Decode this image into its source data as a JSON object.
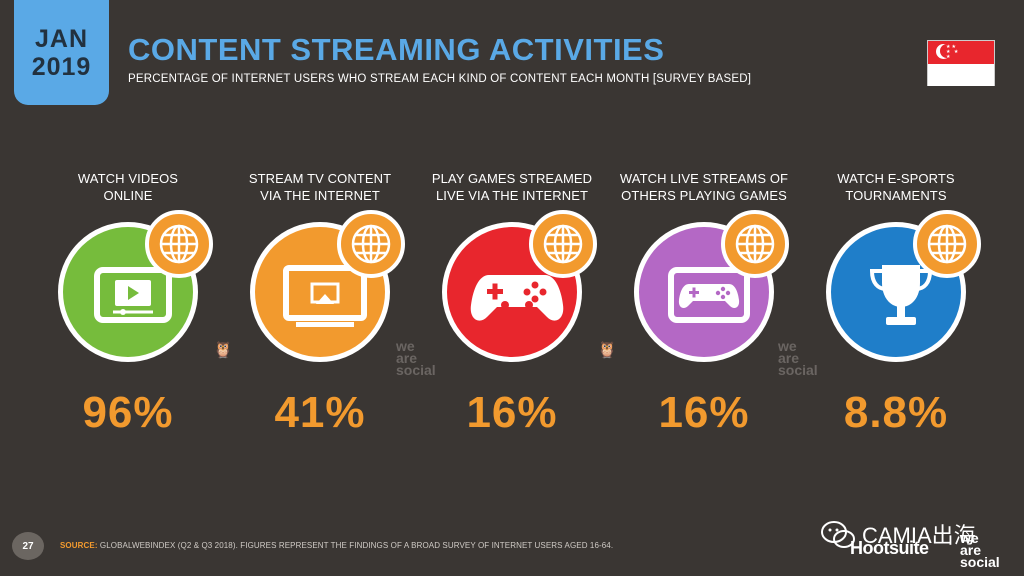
{
  "header": {
    "date_month": "JAN",
    "date_year": "2019",
    "title": "CONTENT STREAMING ACTIVITIES",
    "subtitle": "PERCENTAGE OF INTERNET USERS WHO STREAM EACH KIND OF CONTENT EACH MONTH [SURVEY BASED]"
  },
  "flag": {
    "country": "Singapore",
    "colors": [
      "#e8262d",
      "#ffffff"
    ]
  },
  "items": [
    {
      "label_line1": "WATCH VIDEOS",
      "label_line2": "ONLINE",
      "value": "96%",
      "color": "#76bc3c",
      "icon": "video-player-icon"
    },
    {
      "label_line1": "STREAM TV CONTENT",
      "label_line2": "VIA THE INTERNET",
      "value": "41%",
      "color": "#f29a2e",
      "icon": "tv-stream-icon"
    },
    {
      "label_line1": "PLAY GAMES STREAMED",
      "label_line2": "LIVE VIA THE INTERNET",
      "value": "16%",
      "color": "#e8262d",
      "icon": "gamepad-icon"
    },
    {
      "label_line1": "WATCH LIVE STREAMS OF",
      "label_line2": "OTHERS PLAYING GAMES",
      "value": "16%",
      "color": "#b468c5",
      "icon": "game-stream-icon"
    },
    {
      "label_line1": "WATCH E-SPORTS",
      "label_line2": "TOURNAMENTS",
      "value": "8.8%",
      "color": "#1f7ec9",
      "icon": "trophy-icon"
    }
  ],
  "branding": {
    "wearesocial_1": "we",
    "wearesocial_2": "are",
    "wearesocial_3": "social"
  },
  "footer": {
    "page_number": "27",
    "source_label": "SOURCE:",
    "source_text": "GLOBALWEBINDEX (Q2 & Q3 2018). FIGURES REPRESENT THE FINDINGS OF A BROAD SURVEY OF INTERNET USERS AGED 16-64.",
    "watermark": "CAMIA出海",
    "hootsuite": "Hootsuite",
    "was_1": "we",
    "was_2": "are",
    "was_3": "social"
  }
}
